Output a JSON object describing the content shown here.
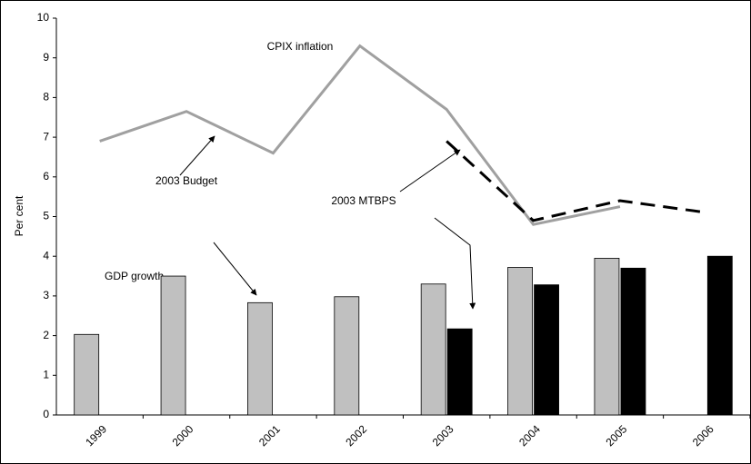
{
  "chart_data": {
    "type": "bar",
    "y_label": "Per cent",
    "categories": [
      "1999",
      "2000",
      "2001",
      "2002",
      "2003",
      "2004",
      "2005",
      "2006"
    ],
    "ylim": [
      0,
      10
    ],
    "yticks": [
      0,
      1,
      2,
      3,
      4,
      5,
      6,
      7,
      8,
      9,
      10
    ],
    "series": [
      {
        "kind": "bar",
        "slot": 0,
        "color": "#c0c0c0",
        "values": [
          2.03,
          3.5,
          2.83,
          2.98,
          3.3,
          3.72,
          3.95,
          null
        ]
      },
      {
        "kind": "bar",
        "slot": 1,
        "color": "#000000",
        "values": [
          null,
          null,
          null,
          null,
          2.17,
          3.28,
          3.7,
          4.0
        ]
      },
      {
        "kind": "line",
        "dash": false,
        "color": "#a0a0a0",
        "values": [
          6.9,
          7.65,
          6.6,
          9.3,
          7.7,
          4.8,
          5.25,
          null
        ]
      },
      {
        "kind": "line",
        "dash": true,
        "color": "#000000",
        "values": [
          null,
          null,
          null,
          null,
          6.9,
          4.9,
          5.4,
          5.1
        ]
      }
    ],
    "annotations": [
      "CPIX inflation",
      "2003 Budget",
      "2003 MTBPS",
      "GDP growth"
    ]
  }
}
